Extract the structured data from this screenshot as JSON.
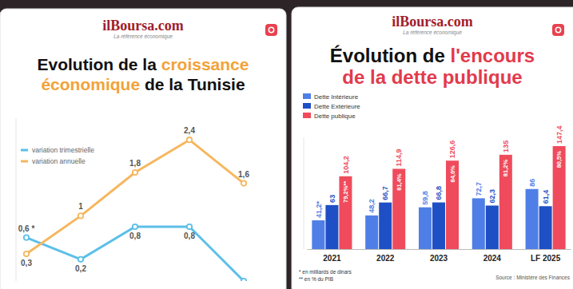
{
  "chart_data": [
    {
      "type": "line",
      "logo": "ilBoursa.com",
      "tagline": "La référence économique",
      "title": [
        "Evolution de la",
        "croissance économique",
        "de la Tunisie"
      ],
      "categories": [
        null,
        null,
        null,
        null,
        null
      ],
      "series": [
        {
          "name": "variation trimestrielle",
          "color": "#5bbfe8",
          "marker": "circle",
          "values": [
            0.6,
            0.2,
            0.8,
            0.8,
            -0.2
          ],
          "value_labels": [
            "0,6 *",
            "0,2",
            "0,8",
            "0,8",
            null
          ]
        },
        {
          "name": "variation annuelle",
          "color": "#f6b75e",
          "marker": "circle",
          "values": [
            0.3,
            1,
            1.8,
            2.4,
            1.6
          ],
          "value_labels": [
            "0,3",
            "1",
            "1,8",
            "2,4",
            "1,6"
          ]
        }
      ],
      "ylim": [
        -0.2,
        2.8
      ],
      "yticks": [],
      "grid": false,
      "legend": "top-left",
      "data_labels": true,
      "tick_labels": false
    },
    {
      "type": "bar",
      "logo": "ilBoursa.com",
      "tagline": "La référence économique",
      "title": [
        "Évolution de",
        "l'encours de la dette publique"
      ],
      "categories": [
        "2021",
        "2022",
        "2023",
        "2024",
        "LF 2025"
      ],
      "series": [
        {
          "name": "Dette Intérieure",
          "color": "#4f7fe6",
          "values": [
            41.2,
            48.2,
            59.8,
            72.7,
            86
          ],
          "value_labels": [
            "41,2*",
            "48,2",
            "59,8",
            "72,7",
            "86"
          ]
        },
        {
          "name": "Dette Extérieure",
          "color": "#1f4fc4",
          "values": [
            63,
            66.7,
            66.8,
            62.3,
            61.4
          ],
          "value_labels": [
            "63",
            "66,7",
            "66,8",
            "62,3",
            "61,4"
          ]
        },
        {
          "name": "Dette publique",
          "color": "#ef4b5c",
          "values": [
            104.2,
            114.9,
            126.6,
            135,
            147.4
          ],
          "value_labels": [
            "104,2",
            "114,9",
            "126,6",
            "135",
            "147,4"
          ]
        }
      ],
      "pib_labels": [
        "79,2%**",
        "81,4%",
        "84,6%",
        "81,2%",
        "80,5%"
      ],
      "ylim": [
        0,
        160
      ],
      "yticks": [],
      "grid": false,
      "legend": "top-left",
      "data_labels": true,
      "tick_labels": "x",
      "notes": [
        "* en milliards de dinars",
        "** en % du PIB"
      ],
      "source": "Source : Ministère des Finances"
    }
  ]
}
